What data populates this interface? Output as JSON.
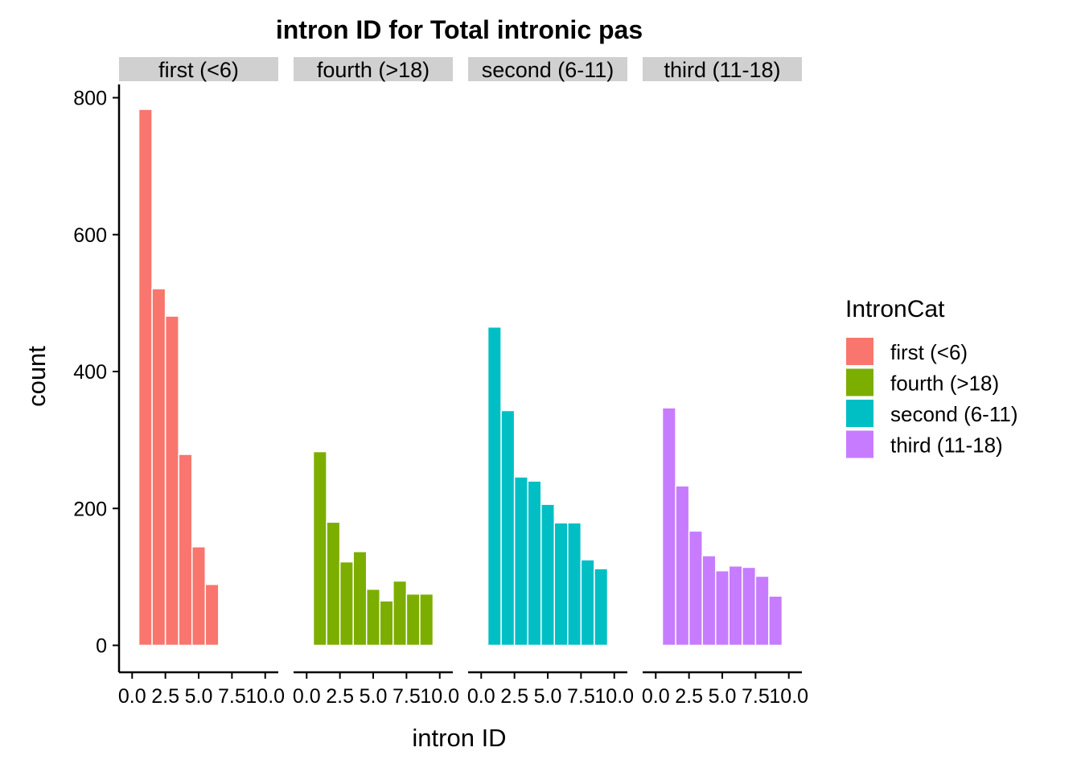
{
  "chart_data": {
    "type": "bar",
    "title": "intron ID for Total intronic pas",
    "xlabel": "intron ID",
    "ylabel": "count",
    "ylim": [
      0,
      820
    ],
    "xlim": [
      -0.5,
      10.5
    ],
    "y_ticks": [
      0,
      200,
      400,
      600,
      800
    ],
    "y_tick_labels": [
      "0",
      "200",
      "400",
      "600",
      "800"
    ],
    "x_ticks": [
      0.0,
      2.5,
      5.0,
      7.5,
      10.0
    ],
    "x_tick_labels": [
      "0.0",
      "2.5",
      "5.0",
      "7.5",
      "10.0"
    ],
    "bin_width": 1,
    "grid": false,
    "legend_position": "right",
    "legend_title": "IntronCat",
    "facets": [
      {
        "name": "first (<6)",
        "color": "#F8766D",
        "x": [
          1,
          2,
          3,
          4,
          5,
          6
        ],
        "values": [
          783,
          521,
          481,
          279,
          144,
          89
        ]
      },
      {
        "name": "fourth (>18)",
        "color": "#7CAE00",
        "x": [
          1,
          2,
          3,
          4,
          5,
          6,
          7,
          8,
          9
        ],
        "values": [
          283,
          180,
          122,
          137,
          82,
          65,
          94,
          75,
          75
        ]
      },
      {
        "name": "second (6-11)",
        "color": "#00BFC4",
        "x": [
          1,
          2,
          3,
          4,
          5,
          6,
          7,
          8,
          9
        ],
        "values": [
          465,
          343,
          246,
          240,
          206,
          179,
          179,
          125,
          112
        ]
      },
      {
        "name": "third (11-18)",
        "color": "#C77CFF",
        "x": [
          1,
          2,
          3,
          4,
          5,
          6,
          7,
          8,
          9
        ],
        "values": [
          347,
          233,
          167,
          131,
          109,
          116,
          114,
          101,
          72
        ]
      }
    ]
  }
}
